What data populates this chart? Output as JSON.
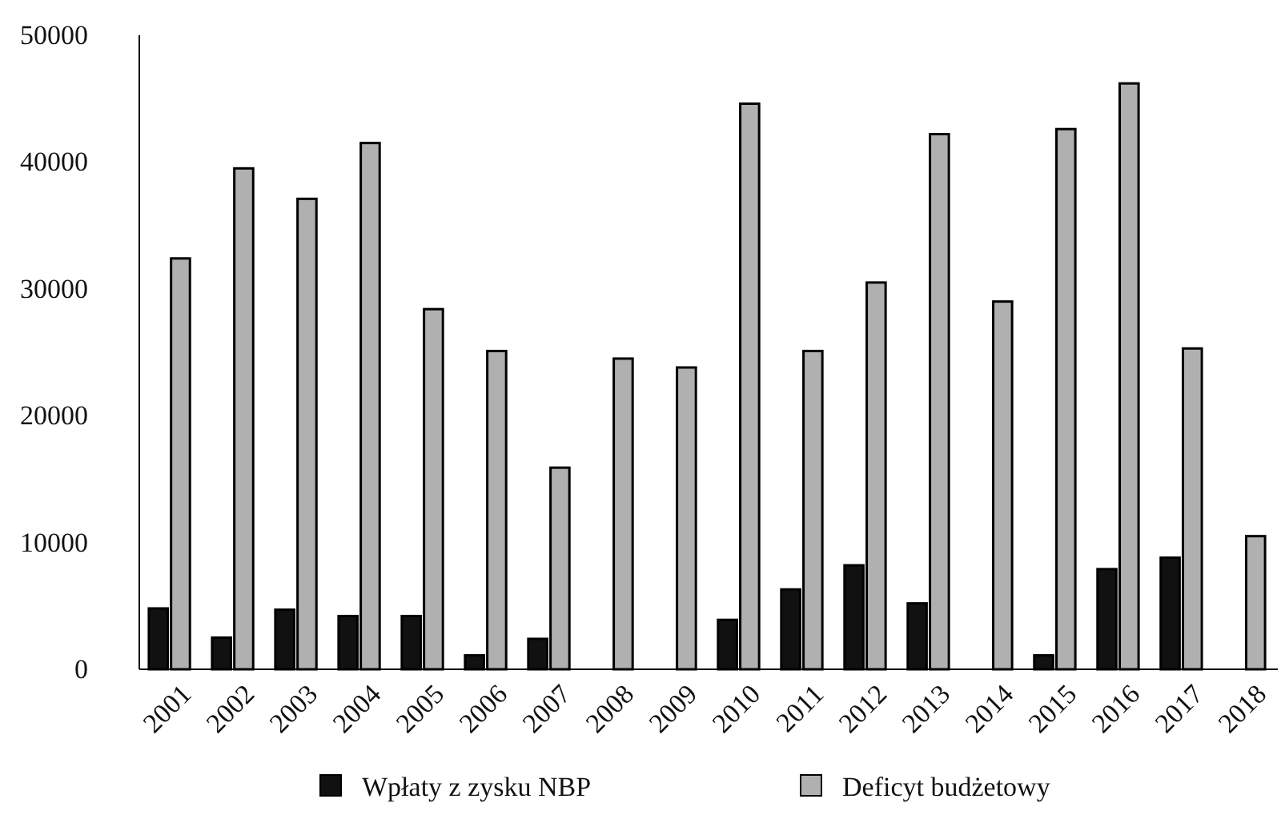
{
  "chart_data": {
    "type": "bar",
    "categories": [
      "2001",
      "2002",
      "2003",
      "2004",
      "2005",
      "2006",
      "2007",
      "2008",
      "2009",
      "2010",
      "2011",
      "2012",
      "2013",
      "2014",
      "2015",
      "2016",
      "2017",
      "2018"
    ],
    "series": [
      {
        "name": "Wpłaty z zysku NBP",
        "color": "#111111",
        "values": [
          4800,
          2500,
          4700,
          4200,
          4200,
          1100,
          2400,
          null,
          null,
          3900,
          6300,
          8200,
          5200,
          null,
          1100,
          7900,
          8800,
          null
        ]
      },
      {
        "name": "Deficyt budżetowy",
        "color": "#b0b0b0",
        "values": [
          32400,
          39500,
          37100,
          41500,
          28400,
          25100,
          15900,
          24500,
          23800,
          44600,
          25100,
          30500,
          42200,
          29000,
          42600,
          46200,
          25300,
          10500
        ]
      }
    ],
    "ylim": [
      0,
      50000
    ],
    "yticks": [
      0,
      10000,
      20000,
      30000,
      40000,
      50000
    ],
    "grid": false,
    "legend": "bottom"
  }
}
